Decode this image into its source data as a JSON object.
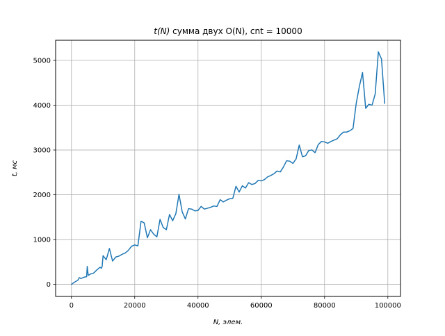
{
  "chart_data": {
    "type": "line",
    "title_prefix": "t(N)",
    "title_rest": " сумма двух O(N), cnt = 10000",
    "xlabel": "N, элем.",
    "ylabel": "t, мс",
    "xlim": [
      -5000,
      104000
    ],
    "ylim": [
      -270,
      5450
    ],
    "xticks": [
      0,
      20000,
      40000,
      60000,
      80000,
      100000
    ],
    "xtick_labels": [
      "0",
      "20000",
      "40000",
      "60000",
      "80000",
      "100000"
    ],
    "yticks": [
      0,
      1000,
      2000,
      3000,
      4000,
      5000
    ],
    "ytick_labels": [
      "0",
      "1000",
      "2000",
      "3000",
      "4000",
      "5000"
    ],
    "grid": true,
    "line_color": "#1f77b4",
    "grid_color": "#b0b0b0",
    "series": [
      {
        "x": [
          0,
          1000,
          2000,
          2500,
          3000,
          4000,
          4800,
          5000,
          5300,
          6000,
          7000,
          8000,
          9000,
          9500,
          9700,
          10000,
          11000,
          12000,
          13000,
          14000,
          15000,
          16000,
          17000,
          18000,
          19000,
          20000,
          21000,
          22000,
          23000,
          24000,
          25000,
          26000,
          27000,
          28000,
          29000,
          30000,
          31000,
          32000,
          33000,
          34000,
          35000,
          36000,
          37000,
          38000,
          39000,
          40000,
          41000,
          42000,
          43000,
          44000,
          45000,
          46000,
          47000,
          48000,
          49000,
          50000,
          51000,
          52000,
          53000,
          54000,
          55000,
          56000,
          57000,
          58000,
          59000,
          60000,
          61000,
          62000,
          63000,
          64000,
          65000,
          66000,
          67000,
          68000,
          69000,
          70000,
          71000,
          72000,
          73000,
          74000,
          75000,
          76000,
          77000,
          78000,
          79000,
          80000,
          81000,
          82000,
          83000,
          84000,
          85000,
          86000,
          87000,
          88000,
          89000,
          90000,
          91000,
          92000,
          93000,
          94000,
          95000,
          96000,
          97000,
          98000,
          99000
        ],
        "y": [
          0,
          50,
          90,
          150,
          130,
          160,
          170,
          400,
          200,
          230,
          250,
          320,
          380,
          360,
          400,
          640,
          550,
          800,
          520,
          610,
          630,
          670,
          700,
          760,
          850,
          880,
          860,
          1410,
          1370,
          1040,
          1220,
          1120,
          1060,
          1450,
          1270,
          1220,
          1560,
          1420,
          1580,
          2010,
          1620,
          1460,
          1690,
          1680,
          1640,
          1650,
          1740,
          1680,
          1700,
          1720,
          1750,
          1740,
          1890,
          1840,
          1880,
          1910,
          1920,
          2190,
          2060,
          2200,
          2150,
          2270,
          2230,
          2250,
          2320,
          2310,
          2340,
          2400,
          2430,
          2470,
          2530,
          2510,
          2620,
          2760,
          2750,
          2700,
          2800,
          3110,
          2850,
          2870,
          2990,
          3000,
          2940,
          3120,
          3190,
          3180,
          3150,
          3190,
          3220,
          3250,
          3340,
          3400,
          3400,
          3430,
          3480,
          4040,
          4420,
          4730,
          3930,
          4020,
          4000,
          4250,
          5190,
          5030,
          4040
        ]
      }
    ]
  }
}
